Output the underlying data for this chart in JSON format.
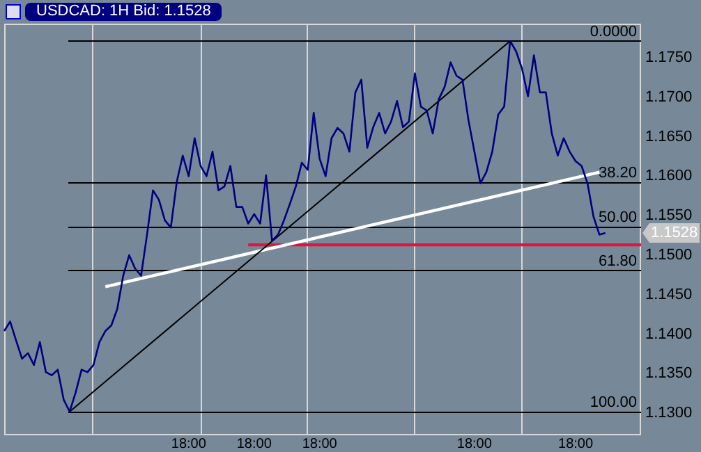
{
  "chart_data": {
    "type": "line",
    "title": "USDCAD: 1H Bid: 1.1528",
    "categories": [
      null,
      null,
      null,
      null,
      null,
      null,
      null,
      null,
      null,
      null,
      null,
      null,
      null,
      null,
      null,
      null,
      null,
      null,
      null,
      null,
      null,
      null,
      null,
      null,
      null,
      null,
      null,
      null,
      null,
      null,
      null,
      "18:00",
      null,
      null,
      null,
      null,
      null,
      null,
      null,
      null,
      null,
      null,
      "18:00",
      null,
      null,
      null,
      null,
      null,
      null,
      null,
      null,
      null,
      null,
      "18:00",
      null,
      null,
      null,
      null,
      null,
      null,
      null,
      null,
      null,
      null,
      null,
      null,
      null,
      null,
      null,
      null,
      null,
      null,
      null,
      null,
      null,
      null,
      null,
      null,
      null,
      "18:00",
      null,
      null,
      null,
      null,
      null,
      null,
      null,
      null,
      null,
      null,
      null,
      null,
      null,
      null,
      null,
      null,
      "18:00",
      null,
      null,
      null,
      null,
      null,
      null,
      null,
      null,
      null,
      null,
      null
    ],
    "series": [
      {
        "color": "#000080",
        "values": [
          1.1404,
          1.1416,
          1.1392,
          1.1369,
          1.1376,
          1.1361,
          1.139,
          1.1352,
          1.1348,
          1.1355,
          1.1317,
          1.1302,
          1.1326,
          1.1355,
          1.1352,
          1.1361,
          1.139,
          1.1404,
          1.1411,
          1.1432,
          1.1474,
          1.15,
          1.1483,
          1.1474,
          1.1526,
          1.1582,
          1.157,
          1.1544,
          1.1535,
          1.1593,
          1.1626,
          1.16,
          1.1648,
          1.1613,
          1.16,
          1.1631,
          1.1582,
          1.1587,
          1.1613,
          1.1561,
          1.1561,
          1.154,
          1.1552,
          1.154,
          1.1601,
          1.1518,
          1.1526,
          1.1544,
          1.1565,
          1.1587,
          1.1617,
          1.1608,
          1.168,
          1.1622,
          1.16,
          1.1648,
          1.1661,
          1.1654,
          1.1631,
          1.1706,
          1.1722,
          1.1636,
          1.1662,
          1.168,
          1.1654,
          1.1669,
          1.1695,
          1.1662,
          1.1669,
          1.173,
          1.1688,
          1.1683,
          1.1654,
          1.1697,
          1.1713,
          1.1744,
          1.1727,
          1.1722,
          1.1671,
          1.1631,
          1.1591,
          1.1605,
          1.1631,
          1.1678,
          1.1688,
          1.1771,
          1.1758,
          1.1736,
          1.1701,
          1.1753,
          1.1706,
          1.1706,
          1.1654,
          1.1626,
          1.1648,
          1.1631,
          1.1619,
          1.1613,
          1.1591,
          1.1549,
          1.1526,
          1.1528,
          null,
          null,
          null,
          null,
          null,
          null
        ]
      },
      {
        "color": "#000000",
        "values": [
          null,
          null,
          null,
          null,
          null,
          null,
          null,
          null,
          null,
          null,
          null,
          1.1302,
          null,
          null,
          null,
          null,
          null,
          null,
          null,
          null,
          null,
          null,
          null,
          null,
          null,
          null,
          null,
          null,
          null,
          null,
          null,
          null,
          null,
          null,
          null,
          null,
          null,
          null,
          null,
          null,
          null,
          null,
          null,
          null,
          null,
          null,
          null,
          null,
          null,
          null,
          null,
          null,
          null,
          null,
          null,
          null,
          null,
          null,
          null,
          null,
          null,
          null,
          null,
          null,
          null,
          null,
          null,
          null,
          null,
          null,
          null,
          null,
          null,
          null,
          null,
          null,
          null,
          null,
          null,
          null,
          null,
          null,
          null,
          null,
          null,
          1.1771,
          null,
          null,
          null,
          null,
          null,
          null,
          null,
          null,
          null,
          null,
          null,
          null,
          null,
          null,
          null,
          null,
          null,
          null,
          null,
          null,
          null,
          null
        ]
      },
      {
        "color": "#ffffff",
        "values": [
          null,
          null,
          null,
          null,
          null,
          null,
          null,
          null,
          null,
          null,
          null,
          null,
          null,
          null,
          null,
          null,
          null,
          1.146,
          null,
          null,
          null,
          null,
          null,
          null,
          null,
          null,
          null,
          null,
          null,
          null,
          null,
          null,
          null,
          null,
          null,
          null,
          null,
          null,
          null,
          null,
          null,
          null,
          null,
          null,
          null,
          null,
          null,
          null,
          null,
          null,
          null,
          null,
          null,
          null,
          null,
          null,
          null,
          null,
          null,
          null,
          null,
          null,
          null,
          null,
          null,
          null,
          null,
          null,
          null,
          null,
          null,
          null,
          null,
          null,
          null,
          null,
          null,
          null,
          null,
          null,
          null,
          null,
          null,
          null,
          null,
          null,
          null,
          null,
          null,
          null,
          null,
          null,
          null,
          null,
          null,
          null,
          null,
          null,
          null,
          null,
          1.1605,
          null,
          null,
          null,
          null,
          null,
          null,
          null
        ]
      },
      {
        "color": "#e0143c",
        "values": [
          null,
          null,
          null,
          null,
          null,
          null,
          null,
          null,
          null,
          null,
          null,
          null,
          null,
          null,
          null,
          null,
          null,
          null,
          null,
          null,
          null,
          null,
          null,
          null,
          null,
          null,
          null,
          null,
          null,
          null,
          null,
          null,
          null,
          null,
          null,
          null,
          null,
          null,
          null,
          null,
          null,
          1.1513,
          null,
          null,
          null,
          null,
          null,
          null,
          null,
          null,
          null,
          null,
          null,
          null,
          null,
          null,
          null,
          null,
          null,
          null,
          null,
          null,
          null,
          null,
          null,
          null,
          null,
          null,
          null,
          null,
          null,
          null,
          null,
          null,
          null,
          null,
          null,
          null,
          null,
          null,
          null,
          null,
          null,
          null,
          null,
          null,
          null,
          null,
          null,
          null,
          null,
          null,
          null,
          null,
          null,
          null,
          null,
          null,
          null,
          null,
          null,
          null,
          null,
          null,
          null,
          null,
          null,
          1.1513
        ]
      }
    ],
    "ylim": [
      1.1272,
      1.1793
    ],
    "yticks": [
      {
        "value": 1.13,
        "label": "1.1300"
      },
      {
        "value": 1.135,
        "label": "1.1350"
      },
      {
        "value": 1.14,
        "label": "1.1400"
      },
      {
        "value": 1.145,
        "label": "1.1450"
      },
      {
        "value": 1.15,
        "label": "1.1500"
      },
      {
        "value": 1.155,
        "label": "1.1550"
      },
      {
        "value": 1.16,
        "label": "1.1600"
      },
      {
        "value": 1.165,
        "label": "1.1650"
      },
      {
        "value": 1.17,
        "label": "1.1700"
      },
      {
        "value": 1.175,
        "label": "1.1750"
      }
    ],
    "ref_lines": [
      {
        "axis": "y",
        "value": 1.1771,
        "color": "#000000"
      },
      {
        "axis": "y",
        "value": 1.1592,
        "color": "#000000"
      },
      {
        "axis": "y",
        "value": 1.1536,
        "color": "#000000"
      },
      {
        "axis": "y",
        "value": 1.1481,
        "color": "#000000"
      },
      {
        "axis": "y",
        "value": 1.1302,
        "color": "#000000"
      }
    ],
    "annotations": [
      {
        "text": "0.0000",
        "y": 1.1771
      },
      {
        "text": "38.20",
        "y": 1.1592
      },
      {
        "text": "50.00",
        "y": 1.1536
      },
      {
        "text": "61.80",
        "y": 1.1481
      },
      {
        "text": "100.00",
        "y": 1.1302
      },
      "1.1528"
    ],
    "grid": false,
    "legend": false,
    "marker": "none",
    "line_style": "solid"
  }
}
